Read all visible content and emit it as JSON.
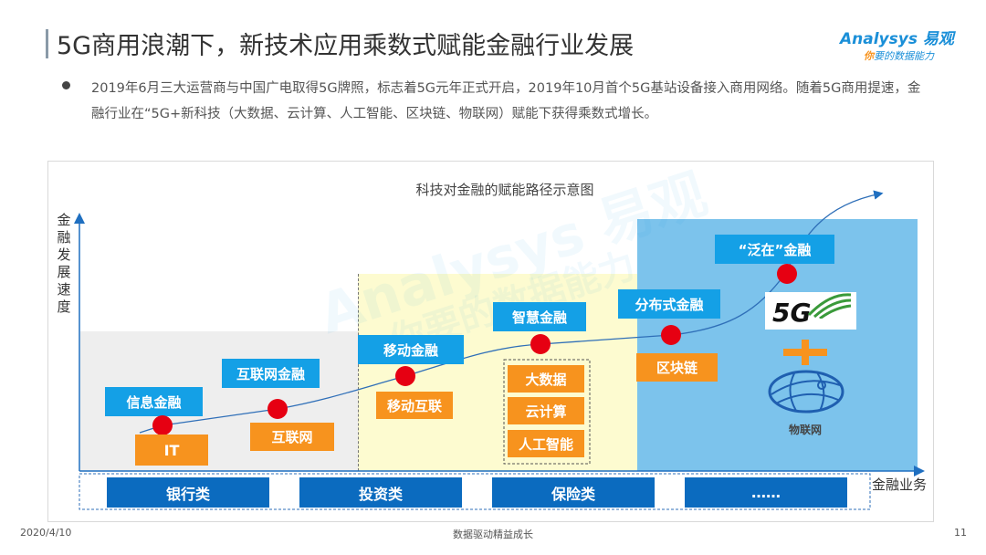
{
  "header": {
    "title": "5G商用浪潮下，新技术应用乘数式赋能金融行业发展",
    "logo_line1": "Analysys 易观",
    "logo_line2_accent": "你",
    "logo_line2": "要的数据能力"
  },
  "bullet": "2019年6月三大运营商与中国广电取得5G牌照，标志着5G元年正式开启，2019年10月首个5G基站设备接入商用网络。随着5G商用提速，金融行业在“5G+新科技（大数据、云计算、人工智能、区块链、物联网）赋能下获得乘数式增长。",
  "diagram": {
    "title": "科技对金融的赋能路径示意图",
    "y_axis": "金融发展速度",
    "x_axis": "金融业务",
    "stages": [
      {
        "finance": "信息金融",
        "tech": "IT"
      },
      {
        "finance": "互联网金融",
        "tech": "互联网"
      },
      {
        "finance": "移动金融",
        "tech": "移动互联"
      },
      {
        "finance": "智慧金融",
        "tech": [
          "大数据",
          "云计算",
          "人工智能"
        ]
      },
      {
        "finance": "分布式金融",
        "tech": "区块链"
      },
      {
        "finance": "“泛在”金融",
        "tech": "5G + 物联网"
      }
    ],
    "fiveg_logo": "5G",
    "iot_label": "物联网",
    "categories": [
      "银行类",
      "投资类",
      "保险类",
      "……"
    ],
    "colors": {
      "finance_label": "#14a0e6",
      "tech_label": "#f7931e",
      "category": "#0b6bbf",
      "dot": "#e60012",
      "stage1_bg": "#eeeeee",
      "stage2_bg": "#fdfbd0",
      "stage3_bg": "#7cc3ec"
    }
  },
  "watermark": {
    "line1": "Analysys 易观",
    "line2": "你要的数据能力"
  },
  "footer": {
    "date": "2020/4/10",
    "slogan": "数据驱动精益成长",
    "page": "11"
  }
}
